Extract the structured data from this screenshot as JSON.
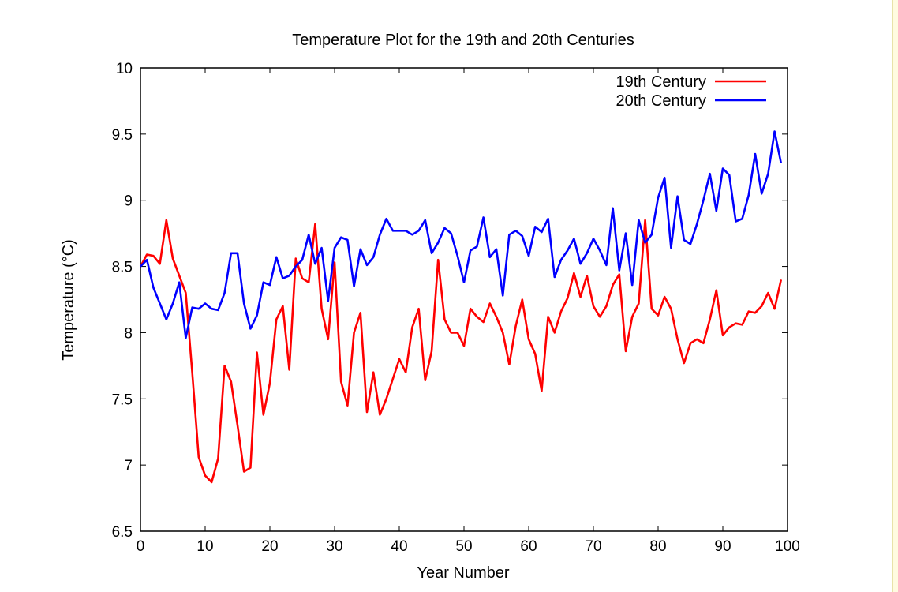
{
  "chart_data": {
    "type": "line",
    "title": "Temperature Plot for the 19th and 20th Centuries",
    "xlabel": "Year Number",
    "ylabel": "Temperature (°C)",
    "xlim": [
      0,
      100
    ],
    "ylim": [
      6.5,
      10
    ],
    "xticks": [
      "0",
      "10",
      "20",
      "30",
      "40",
      "50",
      "60",
      "70",
      "80",
      "90",
      "100"
    ],
    "yticks": [
      "6.5",
      "7",
      "7.5",
      "8",
      "8.5",
      "9",
      "9.5",
      "10"
    ],
    "grid": false,
    "legend_position": "top-right",
    "x": [
      0,
      1,
      2,
      3,
      4,
      5,
      6,
      7,
      8,
      9,
      10,
      11,
      12,
      13,
      14,
      15,
      16,
      17,
      18,
      19,
      20,
      21,
      22,
      23,
      24,
      25,
      26,
      27,
      28,
      29,
      30,
      31,
      32,
      33,
      34,
      35,
      36,
      37,
      38,
      39,
      40,
      41,
      42,
      43,
      44,
      45,
      46,
      47,
      48,
      49,
      50,
      51,
      52,
      53,
      54,
      55,
      56,
      57,
      58,
      59,
      60,
      61,
      62,
      63,
      64,
      65,
      66,
      67,
      68,
      69,
      70,
      71,
      72,
      73,
      74,
      75,
      76,
      77,
      78,
      79,
      80,
      81,
      82,
      83,
      84,
      85,
      86,
      87,
      88,
      89,
      90,
      91,
      92,
      93,
      94,
      95,
      96,
      97,
      98,
      99
    ],
    "series": [
      {
        "name": "19th Century",
        "color": "#ff0000",
        "values": [
          8.5,
          8.59,
          8.58,
          8.52,
          8.85,
          8.56,
          8.43,
          8.3,
          7.7,
          7.06,
          6.92,
          6.87,
          7.05,
          7.75,
          7.63,
          7.3,
          6.95,
          6.98,
          7.85,
          7.38,
          7.62,
          8.1,
          8.2,
          7.72,
          8.56,
          8.41,
          8.38,
          8.82,
          8.18,
          7.95,
          8.53,
          7.63,
          7.45,
          8.0,
          8.15,
          7.4,
          7.7,
          7.38,
          7.5,
          7.65,
          7.8,
          7.7,
          8.04,
          8.18,
          7.64,
          7.86,
          8.55,
          8.1,
          8.0,
          8.0,
          7.9,
          8.18,
          8.12,
          8.08,
          8.22,
          8.12,
          8.0,
          7.76,
          8.05,
          8.25,
          7.95,
          7.84,
          7.56,
          8.12,
          8.0,
          8.16,
          8.26,
          8.45,
          8.27,
          8.43,
          8.2,
          8.12,
          8.2,
          8.36,
          8.44,
          7.86,
          8.12,
          8.22,
          8.85,
          8.18,
          8.13,
          8.27,
          8.18,
          7.95,
          7.77,
          7.92,
          7.95,
          7.92,
          8.1,
          8.32,
          7.98,
          8.04,
          8.07,
          8.06,
          8.16,
          8.15,
          8.2,
          8.3,
          8.18,
          8.4
        ]
      },
      {
        "name": "20th Century",
        "color": "#0000ff",
        "values": [
          8.5,
          8.55,
          8.34,
          8.22,
          8.1,
          8.22,
          8.38,
          7.96,
          8.19,
          8.18,
          8.22,
          8.18,
          8.17,
          8.3,
          8.6,
          8.6,
          8.22,
          8.03,
          8.13,
          8.38,
          8.36,
          8.57,
          8.41,
          8.43,
          8.5,
          8.55,
          8.74,
          8.52,
          8.64,
          8.24,
          8.64,
          8.72,
          8.7,
          8.35,
          8.63,
          8.51,
          8.57,
          8.74,
          8.86,
          8.77,
          8.77,
          8.77,
          8.74,
          8.77,
          8.85,
          8.6,
          8.68,
          8.79,
          8.75,
          8.58,
          8.38,
          8.62,
          8.65,
          8.87,
          8.57,
          8.63,
          8.28,
          8.74,
          8.77,
          8.73,
          8.58,
          8.8,
          8.76,
          8.86,
          8.42,
          8.55,
          8.62,
          8.71,
          8.52,
          8.6,
          8.71,
          8.62,
          8.51,
          8.94,
          8.47,
          8.75,
          8.36,
          8.85,
          8.68,
          8.74,
          9.02,
          9.17,
          8.64,
          9.03,
          8.7,
          8.67,
          8.82,
          9.0,
          9.2,
          8.92,
          9.24,
          9.19,
          8.84,
          8.86,
          9.04,
          9.35,
          9.05,
          9.2,
          9.52,
          9.28
        ]
      }
    ]
  }
}
